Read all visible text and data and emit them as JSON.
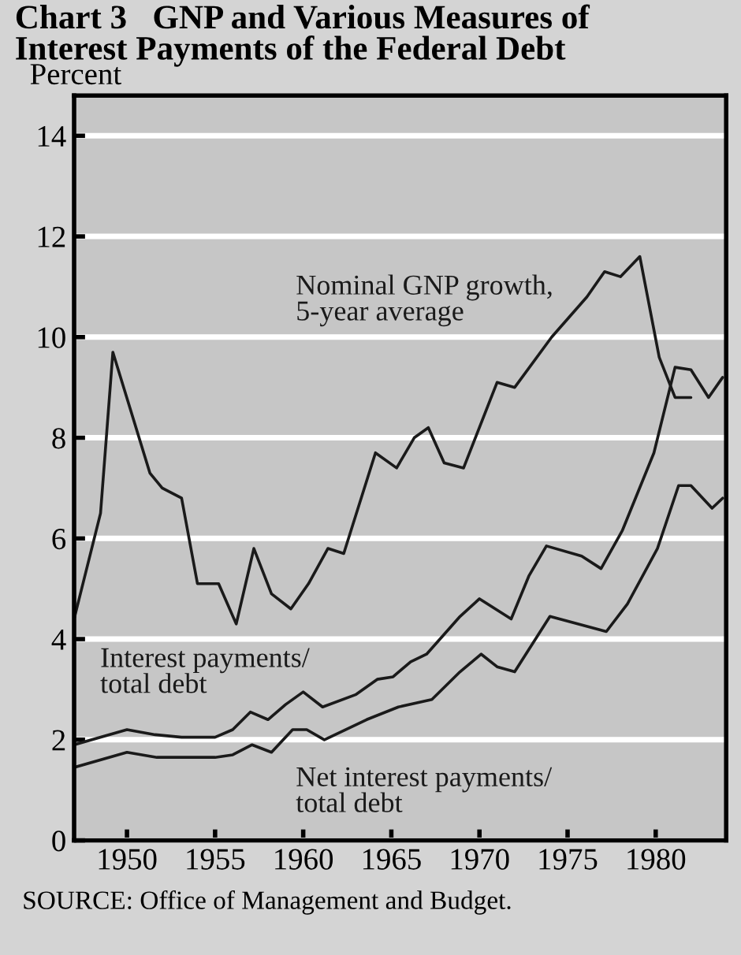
{
  "chart_data": {
    "type": "line",
    "title": "Chart 3   GNP and Various Measures of\nInterest Payments of the Federal Debt",
    "ylabel": "Percent",
    "xlim": [
      1947,
      1984
    ],
    "xticks": [
      1950,
      1955,
      1960,
      1965,
      1970,
      1975,
      1980
    ],
    "ylim": [
      0,
      14.8
    ],
    "yticks": [
      0,
      2,
      4,
      6,
      8,
      10,
      12,
      14
    ],
    "grid": "y",
    "legend": false,
    "marker": "none",
    "line_style": "solid",
    "series": [
      {
        "name": "Nominal GNP growth,\n5-year average",
        "color": "#1a1a1a",
        "x": [
          1947,
          1948.5,
          1949.2,
          1951.3,
          1952,
          1953.1,
          1954,
          1955.2,
          1956.2,
          1957.2,
          1958.2,
          1959.3,
          1960.3,
          1961.4,
          1962.3,
          1964.1,
          1965.3,
          1966.3,
          1967.1,
          1968,
          1969.1,
          1971,
          1972,
          1974.1,
          1976.1,
          1977.1,
          1978,
          1979.1,
          1980.2,
          1981.1,
          1982
        ],
        "values": [
          4.4,
          6.5,
          9.7,
          7.3,
          7.0,
          6.8,
          5.1,
          5.1,
          4.3,
          5.8,
          4.9,
          4.6,
          5.1,
          5.8,
          5.7,
          7.7,
          7.4,
          8.0,
          8.2,
          7.5,
          7.4,
          9.1,
          9.0,
          10.0,
          10.8,
          11.3,
          11.2,
          11.6,
          9.6,
          8.8,
          8.8
        ]
      },
      {
        "name": "Interest payments/\ntotal debt",
        "color": "#1a1a1a",
        "x": [
          1947,
          1950,
          1951.6,
          1953.1,
          1955,
          1956,
          1957,
          1958,
          1959,
          1960,
          1961.1,
          1963,
          1964.2,
          1965.1,
          1966.1,
          1967,
          1968.9,
          1970,
          1970.9,
          1971.8,
          1972.8,
          1973.8,
          1975.8,
          1976.9,
          1978.1,
          1979.9,
          1981.1,
          1982,
          1983,
          1983.8
        ],
        "values": [
          1.9,
          2.2,
          2.1,
          2.05,
          2.05,
          2.2,
          2.55,
          2.4,
          2.7,
          2.95,
          2.65,
          2.9,
          3.2,
          3.25,
          3.55,
          3.7,
          4.45,
          4.8,
          4.6,
          4.4,
          5.25,
          5.85,
          5.65,
          5.4,
          6.15,
          7.7,
          9.4,
          9.35,
          8.8,
          9.2
        ]
      },
      {
        "name": "Net interest payments/\ntotal debt",
        "color": "#1a1a1a",
        "x": [
          1947,
          1950,
          1951.7,
          1955,
          1956,
          1957.1,
          1958.2,
          1959.4,
          1960.2,
          1961.2,
          1963.6,
          1965.4,
          1967.3,
          1968.9,
          1970.1,
          1971,
          1972,
          1974,
          1977.2,
          1978.4,
          1980.1,
          1981.3,
          1982,
          1983.2,
          1983.8
        ],
        "values": [
          1.45,
          1.75,
          1.65,
          1.65,
          1.7,
          1.9,
          1.75,
          2.2,
          2.2,
          2.0,
          2.4,
          2.65,
          2.8,
          3.35,
          3.7,
          3.45,
          3.35,
          4.45,
          4.15,
          4.7,
          5.8,
          7.05,
          7.05,
          6.6,
          6.8
        ]
      }
    ],
    "annotations": [
      "SOURCE: Office of Management and Budget."
    ]
  }
}
